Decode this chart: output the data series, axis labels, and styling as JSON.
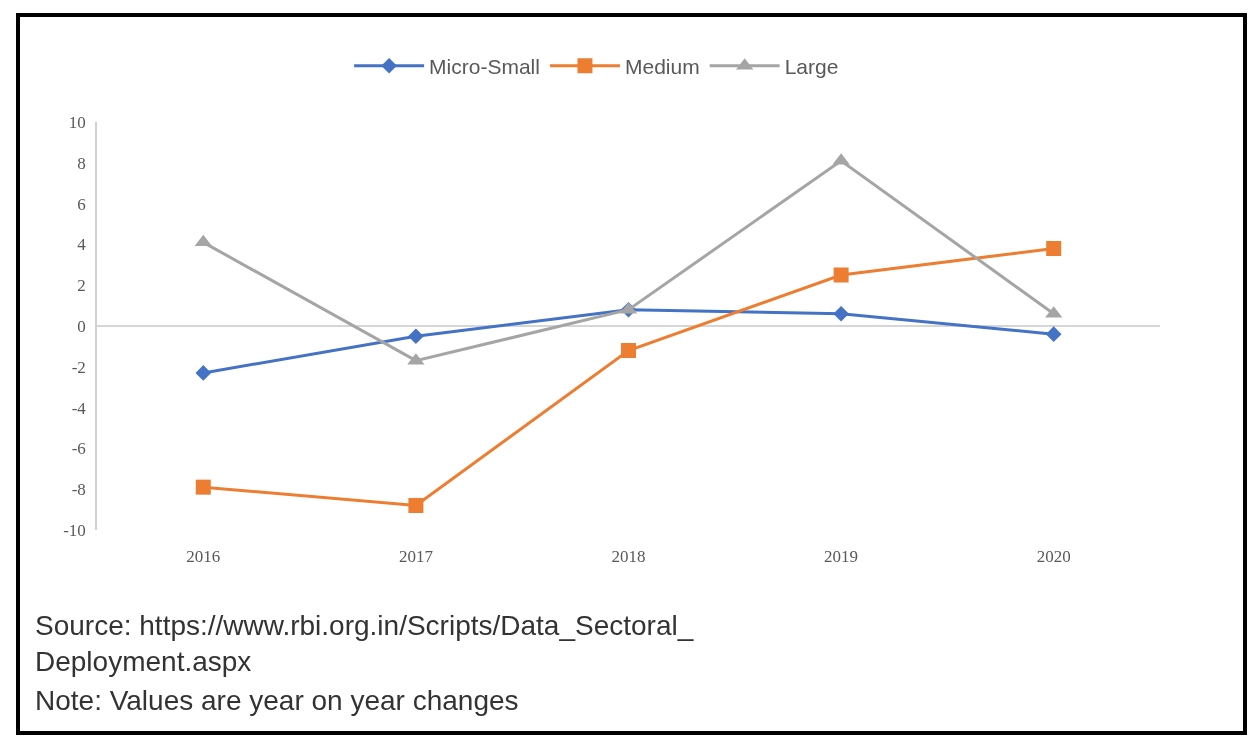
{
  "chart_data": {
    "type": "line",
    "categories": [
      "2016",
      "2017",
      "2018",
      "2019",
      "2020"
    ],
    "series": [
      {
        "name": "Micro-Small",
        "color": "#4472c4",
        "marker": "diamond",
        "values": [
          -2.3,
          -0.5,
          0.8,
          0.6,
          -0.4
        ]
      },
      {
        "name": "Medium",
        "color": "#ed7d31",
        "marker": "square",
        "values": [
          -7.9,
          -8.8,
          -1.2,
          2.5,
          3.8
        ]
      },
      {
        "name": "Large",
        "color": "#a5a5a5",
        "marker": "triangle",
        "values": [
          4.1,
          -1.7,
          0.8,
          8.1,
          0.6
        ]
      }
    ],
    "ylim": [
      -10,
      10
    ],
    "yticks": [
      -10,
      -8,
      -6,
      -4,
      -2,
      0,
      2,
      4,
      6,
      8,
      10
    ],
    "legend": "top",
    "line_style": "solid",
    "ref_lines": [
      {
        "axis": "y",
        "value": 0,
        "color": "#c8c8c8"
      }
    ],
    "annotations": [
      "Source: https://www.rbi.org.in/Scripts/Data_Sectoral_\nDeployment.aspx",
      "Note: Values are year on year changes"
    ]
  }
}
